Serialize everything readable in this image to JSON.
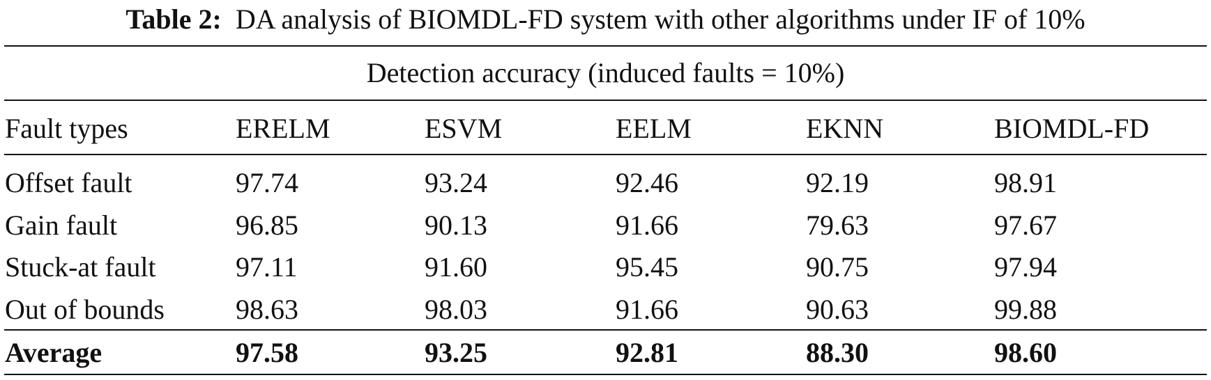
{
  "caption": {
    "label": "Table 2:",
    "text": "DA analysis of BIOMDL-FD system with other algorithms under IF of 10%"
  },
  "table": {
    "group_header": "Detection accuracy (induced faults = 10%)",
    "columns": [
      "Fault types",
      "ERELM",
      "ESVM",
      "EELM",
      "EKNN",
      "BIOMDL-FD"
    ],
    "rows": [
      [
        "Offset fault",
        "97.74",
        "93.24",
        "92.46",
        "92.19",
        "98.91"
      ],
      [
        "Gain fault",
        "96.85",
        "90.13",
        "91.66",
        "79.63",
        "97.67"
      ],
      [
        "Stuck-at fault",
        "97.11",
        "91.60",
        "95.45",
        "90.75",
        "97.94"
      ],
      [
        "Out of bounds",
        "98.63",
        "98.03",
        "91.66",
        "90.63",
        "99.88"
      ]
    ],
    "footer": [
      "Average",
      "97.58",
      "93.25",
      "92.81",
      "88.30",
      "98.60"
    ]
  }
}
